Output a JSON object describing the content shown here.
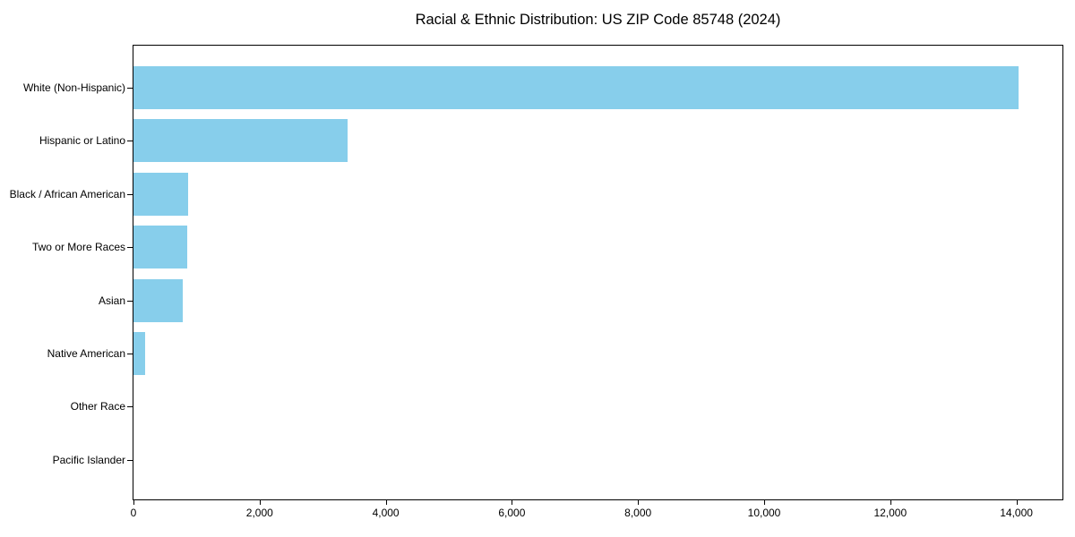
{
  "chart_data": {
    "type": "bar",
    "orientation": "horizontal",
    "title": "Racial & Ethnic Distribution: US ZIP Code 85748 (2024)",
    "categories": [
      "White (Non-Hispanic)",
      "Hispanic or Latino",
      "Black / African American",
      "Two or More Races",
      "Asian",
      "Native American",
      "Other Race",
      "Pacific Islander"
    ],
    "values": [
      14040,
      3390,
      860,
      850,
      780,
      180,
      0,
      0
    ],
    "categories_order": "top-to-bottom",
    "xlabel": "",
    "ylabel": "",
    "xlim": [
      0,
      14730
    ],
    "x_ticks": [
      0,
      2000,
      4000,
      6000,
      8000,
      10000,
      12000,
      14000
    ],
    "x_tick_labels": [
      "0",
      "2,000",
      "4,000",
      "6,000",
      "8,000",
      "10,000",
      "12,000",
      "14,000"
    ],
    "bar_color": "#87CEEB",
    "axis_color": "#000000",
    "background_color": "#ffffff",
    "grid": false,
    "legend": false
  }
}
